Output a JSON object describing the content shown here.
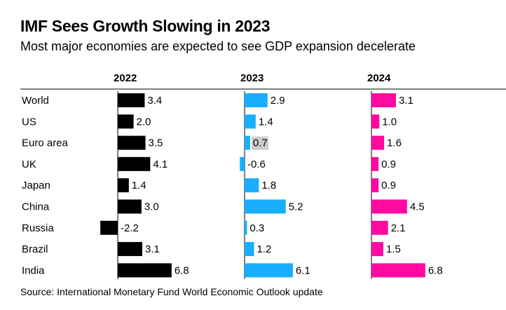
{
  "title": "IMF Sees Growth Slowing in 2023",
  "subtitle": "Most major economies are expected to see GDP expansion decelerate",
  "source": "Source: International Monetary Fund World Economic Outlook update",
  "chart_data": {
    "type": "bar",
    "orientation": "horizontal",
    "categories": [
      "World",
      "US",
      "Euro area",
      "UK",
      "Japan",
      "China",
      "Russia",
      "Brazil",
      "India"
    ],
    "series": [
      {
        "name": "2022",
        "color": "#000000",
        "values": [
          3.4,
          2.0,
          3.5,
          4.1,
          1.4,
          3.0,
          -2.2,
          3.1,
          6.8
        ],
        "labels": [
          "3.4",
          "2.0",
          "3.5",
          "4.1",
          "1.4",
          "3.0",
          "-2.2",
          "3.1",
          "6.8"
        ]
      },
      {
        "name": "2023",
        "color": "#1aaeff",
        "values": [
          2.9,
          1.4,
          0.7,
          -0.6,
          1.8,
          5.2,
          0.3,
          1.2,
          6.1
        ],
        "labels": [
          "2.9",
          "1.4",
          "0.7",
          "-0.6",
          "1.8",
          "5.2",
          "0.3",
          "1.2",
          "6.1"
        ]
      },
      {
        "name": "2024",
        "color": "#ff0aa0",
        "values": [
          3.1,
          1.0,
          1.6,
          0.9,
          0.9,
          4.5,
          2.1,
          1.5,
          6.8
        ],
        "labels": [
          "3.1",
          "1.0",
          "1.6",
          "0.9",
          "0.9",
          "4.5",
          "2.1",
          "1.5",
          "6.8"
        ]
      }
    ],
    "highlighted_label": {
      "series": "2023",
      "category": "Euro area",
      "color": "#cccccc"
    },
    "grid": false,
    "legend": "column headers"
  }
}
